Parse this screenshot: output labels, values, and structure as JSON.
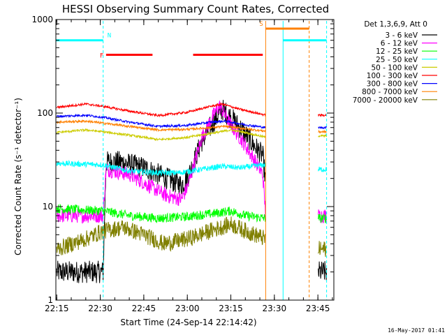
{
  "chart_data": {
    "type": "line",
    "title": "HESSI Observing Summary Count Rates, Corrected",
    "xlabel": "Start Time (24-Sep-14 22:14:42)",
    "ylabel": "Corrected Count Rate (s⁻¹ detector⁻¹)",
    "y_scale": "log",
    "ylim": [
      1,
      1000
    ],
    "xlim": [
      "22:14:42",
      "23:50:30"
    ],
    "x_ticks": [
      "22:15",
      "22:30",
      "22:45",
      "23:00",
      "23:15",
      "23:30",
      "23:45"
    ],
    "y_ticks": [
      "1",
      "10",
      "100",
      "1000"
    ],
    "legend_title": "Det 1,3,6,9, Att 0",
    "legend_placement": "right, outside",
    "footer_date": "16-May-2017 01:41",
    "series": [
      {
        "name": "3 - 6 keV",
        "color": "#000000",
        "points": [
          [
            "22:15",
            2
          ],
          [
            "22:31",
            2
          ],
          [
            "22:32",
            30
          ],
          [
            "22:37",
            30
          ],
          [
            "22:45",
            26
          ],
          [
            "22:53",
            20
          ],
          [
            "22:58",
            17
          ],
          [
            "23:00",
            20
          ],
          [
            "23:05",
            50
          ],
          [
            "23:09",
            80
          ],
          [
            "23:12",
            110
          ],
          [
            "23:15",
            90
          ],
          [
            "23:19",
            65
          ],
          [
            "23:23",
            45
          ],
          [
            "23:26",
            35
          ],
          [
            "23:27",
            18
          ],
          [
            "23:45",
            2
          ],
          [
            "23:48",
            2
          ]
        ]
      },
      {
        "name": "6 - 12 keV",
        "color": "#ff00ff",
        "points": [
          [
            "22:15",
            8
          ],
          [
            "22:31",
            8
          ],
          [
            "22:32",
            25
          ],
          [
            "22:40",
            22
          ],
          [
            "22:45",
            18
          ],
          [
            "22:53",
            13
          ],
          [
            "22:58",
            12
          ],
          [
            "23:00",
            16
          ],
          [
            "23:05",
            55
          ],
          [
            "23:09",
            95
          ],
          [
            "23:11",
            120
          ],
          [
            "23:15",
            75
          ],
          [
            "23:19",
            50
          ],
          [
            "23:23",
            32
          ],
          [
            "23:26",
            22
          ],
          [
            "23:27",
            8
          ],
          [
            "23:45",
            8
          ],
          [
            "23:48",
            8
          ]
        ]
      },
      {
        "name": "12 - 25 keV",
        "color": "#00ff00",
        "points": [
          [
            "22:15",
            9.5
          ],
          [
            "22:31",
            9
          ],
          [
            "22:40",
            8
          ],
          [
            "22:50",
            7.5
          ],
          [
            "23:00",
            7.8
          ],
          [
            "23:10",
            8.5
          ],
          [
            "23:15",
            9
          ],
          [
            "23:20",
            8
          ],
          [
            "23:27",
            7.5
          ],
          [
            "23:45",
            7.5
          ],
          [
            "23:48",
            7.5
          ]
        ]
      },
      {
        "name": "25 - 50 keV",
        "color": "#00ffff",
        "points": [
          [
            "22:15",
            29
          ],
          [
            "22:31",
            28
          ],
          [
            "22:40",
            24
          ],
          [
            "22:50",
            23
          ],
          [
            "22:57",
            23
          ],
          [
            "23:05",
            25
          ],
          [
            "23:12",
            27
          ],
          [
            "23:18",
            26
          ],
          [
            "23:27",
            28
          ],
          [
            "23:45",
            25
          ],
          [
            "23:48",
            25
          ]
        ]
      },
      {
        "name": "50 - 100 keV",
        "color": "#cccc00",
        "points": [
          [
            "22:15",
            62
          ],
          [
            "22:25",
            66
          ],
          [
            "22:31",
            63
          ],
          [
            "22:40",
            58
          ],
          [
            "22:50",
            52
          ],
          [
            "23:00",
            55
          ],
          [
            "23:10",
            62
          ],
          [
            "23:15",
            66
          ],
          [
            "23:20",
            62
          ],
          [
            "23:27",
            55
          ],
          [
            "23:45",
            57
          ],
          [
            "23:48",
            57
          ]
        ]
      },
      {
        "name": "100 - 300 keV",
        "color": "#ff0000",
        "points": [
          [
            "22:15",
            115
          ],
          [
            "22:25",
            125
          ],
          [
            "22:31",
            118
          ],
          [
            "22:40",
            105
          ],
          [
            "22:50",
            94
          ],
          [
            "23:00",
            102
          ],
          [
            "23:08",
            118
          ],
          [
            "23:12",
            125
          ],
          [
            "23:18",
            110
          ],
          [
            "23:27",
            95
          ],
          [
            "23:45",
            95
          ],
          [
            "23:48",
            95
          ]
        ]
      },
      {
        "name": "300 - 800 keV",
        "color": "#0000ff",
        "points": [
          [
            "22:15",
            92
          ],
          [
            "22:25",
            95
          ],
          [
            "22:31",
            90
          ],
          [
            "22:40",
            80
          ],
          [
            "22:50",
            72
          ],
          [
            "23:00",
            74
          ],
          [
            "23:08",
            80
          ],
          [
            "23:13",
            82
          ],
          [
            "23:20",
            75
          ],
          [
            "23:27",
            70
          ],
          [
            "23:45",
            70
          ],
          [
            "23:48",
            70
          ]
        ]
      },
      {
        "name": "800 - 7000 keV",
        "color": "#ff8000",
        "points": [
          [
            "22:15",
            80
          ],
          [
            "22:25",
            82
          ],
          [
            "22:31",
            78
          ],
          [
            "22:40",
            72
          ],
          [
            "22:50",
            66
          ],
          [
            "23:00",
            67
          ],
          [
            "23:08",
            70
          ],
          [
            "23:13",
            72
          ],
          [
            "23:20",
            68
          ],
          [
            "23:27",
            64
          ],
          [
            "23:45",
            63
          ],
          [
            "23:48",
            63
          ]
        ]
      },
      {
        "name": "7000 - 20000 keV",
        "color": "#808000",
        "points": [
          [
            "22:15",
            3.5
          ],
          [
            "22:25",
            4.5
          ],
          [
            "22:31",
            5.5
          ],
          [
            "22:38",
            6
          ],
          [
            "22:45",
            5
          ],
          [
            "22:52",
            4
          ],
          [
            "23:00",
            4.5
          ],
          [
            "23:08",
            5.5
          ],
          [
            "23:15",
            6.5
          ],
          [
            "23:20",
            5.5
          ],
          [
            "23:27",
            4.5
          ],
          [
            "23:45",
            3.5
          ],
          [
            "23:48",
            3.5
          ]
        ]
      }
    ],
    "gaps": [
      [
        "23:27",
        "23:45"
      ]
    ],
    "flag_lines": [
      {
        "label": "N",
        "color": "#00ffff",
        "y": 600,
        "segments": [
          [
            "22:14:42",
            "22:31"
          ],
          [
            "23:33",
            "23:48"
          ]
        ]
      },
      {
        "label": "F",
        "color": "#ff0000",
        "y": 420,
        "segments": [
          [
            "22:32",
            "22:48"
          ],
          [
            "23:02",
            "23:26"
          ]
        ]
      },
      {
        "label": "S",
        "color": "#ff8000",
        "y": 800,
        "segments": [
          [
            "23:27",
            "23:42"
          ]
        ]
      }
    ],
    "vertical_lines": [
      {
        "time": "22:31",
        "color": "#00ffff",
        "style": "dashed"
      },
      {
        "time": "23:27",
        "color": "#ff8000",
        "style": "solid"
      },
      {
        "time": "23:33",
        "color": "#00ffff",
        "style": "solid"
      },
      {
        "time": "23:42",
        "color": "#ff8000",
        "style": "dashed"
      },
      {
        "time": "23:48",
        "color": "#00ffff",
        "style": "dashed"
      }
    ]
  }
}
